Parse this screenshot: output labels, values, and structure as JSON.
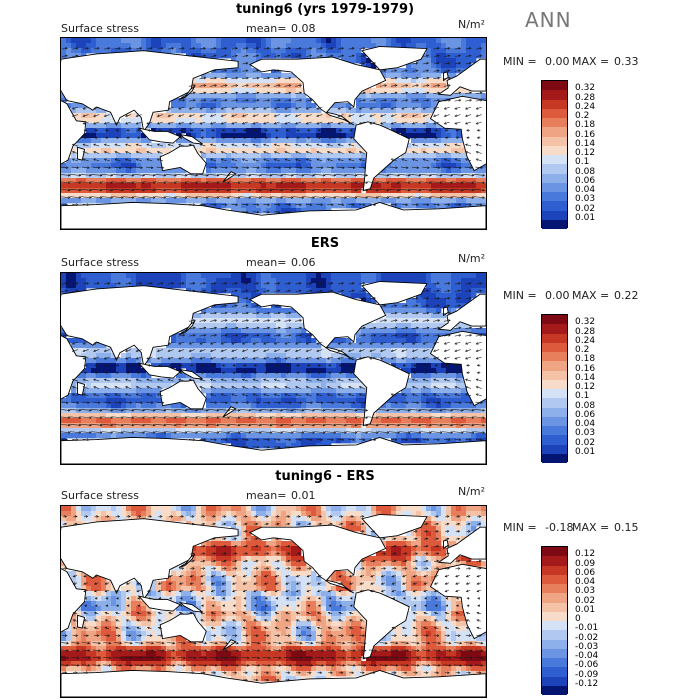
{
  "season_label": "ANN",
  "colors": {
    "positive": [
      "#f7ddc9",
      "#f4c3a7",
      "#efa484",
      "#e87f5c",
      "#dd5a3d",
      "#c73824",
      "#a4191a",
      "#7d0a12"
    ],
    "negative": [
      "#d5e2f6",
      "#b1c9f0",
      "#8db0ea",
      "#6b95e3",
      "#4a79dc",
      "#2f5ed0",
      "#1d43bb",
      "#10289a",
      "#051572"
    ],
    "land": "#ffffff",
    "coast": "#000000",
    "arrow": "#1a1a1a"
  },
  "panels": [
    {
      "title": "tuning6 (yrs 1979-1979)",
      "variable": "Surface stress",
      "mean_label": "mean=",
      "mean_value": "0.08",
      "units": "N/m²",
      "min_label": "MIN =",
      "min_value": "0.00",
      "max_label": "MAX =",
      "max_value": "0.33",
      "colorbar": {
        "levels": [
          "0.32",
          "0.28",
          "0.24",
          "0.2",
          "0.18",
          "0.16",
          "0.14",
          "0.12",
          "0.1",
          "0.08",
          "0.06",
          "0.04",
          "0.03",
          "0.02",
          "0.01"
        ],
        "colors": [
          "#7d0a12",
          "#a4191a",
          "#c73824",
          "#dd5a3d",
          "#e87f5c",
          "#efa484",
          "#f4c3a7",
          "#f7ddc9",
          "#d5e2f6",
          "#b1c9f0",
          "#8db0ea",
          "#6b95e3",
          "#4a79dc",
          "#2f5ed0",
          "#1d43bb",
          "#051572"
        ]
      },
      "field_type": "magnitude"
    },
    {
      "title": "ERS",
      "variable": "Surface stress",
      "mean_label": "mean=",
      "mean_value": "0.06",
      "units": "N/m²",
      "min_label": "MIN =",
      "min_value": "0.00",
      "max_label": "MAX =",
      "max_value": "0.22",
      "colorbar": {
        "levels": [
          "0.32",
          "0.28",
          "0.24",
          "0.2",
          "0.18",
          "0.16",
          "0.14",
          "0.12",
          "0.1",
          "0.08",
          "0.06",
          "0.04",
          "0.03",
          "0.02",
          "0.01"
        ],
        "colors": [
          "#7d0a12",
          "#a4191a",
          "#c73824",
          "#dd5a3d",
          "#e87f5c",
          "#efa484",
          "#f4c3a7",
          "#f7ddc9",
          "#d5e2f6",
          "#b1c9f0",
          "#8db0ea",
          "#6b95e3",
          "#4a79dc",
          "#2f5ed0",
          "#1d43bb",
          "#051572"
        ]
      },
      "field_type": "magnitude_obs"
    },
    {
      "title": "tuning6 - ERS",
      "variable": "Surface stress",
      "mean_label": "mean=",
      "mean_value": "0.01",
      "units": "N/m²",
      "min_label": "MIN =",
      "min_value": "-0.18",
      "max_label": "MAX =",
      "max_value": "0.15",
      "colorbar": {
        "levels": [
          "0.12",
          "0.09",
          "0.06",
          "0.04",
          "0.03",
          "0.02",
          "0.01",
          "0",
          "-0.01",
          "-0.02",
          "-0.03",
          "-0.04",
          "-0.06",
          "-0.09",
          "-0.12"
        ],
        "colors": [
          "#7d0a12",
          "#a4191a",
          "#c73824",
          "#dd5a3d",
          "#e87f5c",
          "#efa484",
          "#f4c3a7",
          "#f7ddc9",
          "#d5e2f6",
          "#b1c9f0",
          "#8db0ea",
          "#6b95e3",
          "#4a79dc",
          "#2f5ed0",
          "#1d43bb",
          "#051572"
        ]
      },
      "field_type": "difference"
    }
  ]
}
